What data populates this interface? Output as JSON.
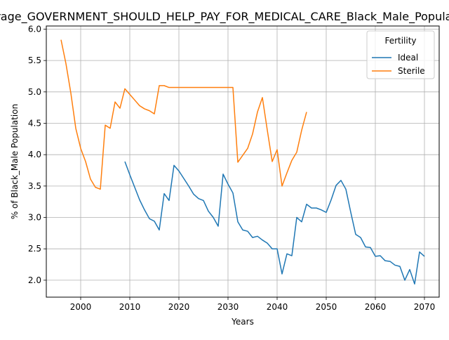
{
  "chart_data": {
    "type": "line",
    "title": "Average_GOVERNMENT_SHOULD_HELP_PAY_FOR_MEDICAL_CARE_Black_Male_Population",
    "xlabel": "Years",
    "ylabel": "% of Black_Male Population",
    "xlim": [
      1993,
      2073
    ],
    "ylim": [
      1.73,
      6.05
    ],
    "x_ticks": [
      2000,
      2010,
      2020,
      2030,
      2040,
      2050,
      2060,
      2070
    ],
    "y_ticks": [
      2.0,
      2.5,
      3.0,
      3.5,
      4.0,
      4.5,
      5.0,
      5.5,
      6.0
    ],
    "grid": true,
    "legend": {
      "title": "Fertility",
      "position": "top-right"
    },
    "series": [
      {
        "name": "Ideal",
        "color": "#1f77b4",
        "x": [
          2009,
          2010,
          2011,
          2012,
          2013,
          2014,
          2015,
          2016,
          2017,
          2018,
          2019,
          2020,
          2021,
          2022,
          2023,
          2024,
          2025,
          2026,
          2027,
          2028,
          2029,
          2030,
          2031,
          2032,
          2033,
          2034,
          2035,
          2036,
          2037,
          2038,
          2039,
          2040,
          2041,
          2042,
          2043,
          2044,
          2045,
          2046,
          2047,
          2048,
          2049,
          2050,
          2051,
          2052,
          2053,
          2054,
          2055,
          2056,
          2057,
          2058,
          2059,
          2060,
          2061,
          2062,
          2063,
          2064,
          2065,
          2066,
          2067,
          2068,
          2069,
          2070
        ],
        "values": [
          3.89,
          3.68,
          3.48,
          3.28,
          3.12,
          2.98,
          2.94,
          2.8,
          3.38,
          3.27,
          3.83,
          3.74,
          3.62,
          3.5,
          3.37,
          3.3,
          3.27,
          3.1,
          3.0,
          2.86,
          3.69,
          3.53,
          3.39,
          2.93,
          2.8,
          2.78,
          2.68,
          2.7,
          2.64,
          2.59,
          2.5,
          2.5,
          2.1,
          2.42,
          2.39,
          3.0,
          2.93,
          3.21,
          3.15,
          3.15,
          3.12,
          3.08,
          3.28,
          3.51,
          3.59,
          3.45,
          3.08,
          2.73,
          2.68,
          2.53,
          2.52,
          2.38,
          2.39,
          2.31,
          2.3,
          2.24,
          2.22,
          2.0,
          2.17,
          1.94,
          2.45,
          2.38
        ]
      },
      {
        "name": "Sterile",
        "color": "#ff7f0e",
        "x": [
          1996,
          1997,
          1998,
          1999,
          2000,
          2001,
          2002,
          2003,
          2004,
          2005,
          2006,
          2007,
          2008,
          2009,
          2010,
          2011,
          2012,
          2013,
          2014,
          2015,
          2016,
          2017,
          2018,
          2019,
          2020,
          2021,
          2022,
          2023,
          2024,
          2025,
          2026,
          2027,
          2028,
          2029,
          2030,
          2031,
          2032,
          2033,
          2034,
          2035,
          2036,
          2037,
          2038,
          2039,
          2040,
          2041,
          2042,
          2043,
          2044,
          2045,
          2046
        ],
        "values": [
          5.83,
          5.45,
          4.98,
          4.42,
          4.1,
          3.89,
          3.61,
          3.48,
          3.45,
          4.47,
          4.42,
          4.84,
          4.74,
          5.05,
          4.96,
          4.87,
          4.78,
          4.73,
          4.7,
          4.65,
          5.1,
          5.1,
          5.07,
          5.07,
          5.07,
          5.07,
          5.07,
          5.07,
          5.07,
          5.07,
          5.07,
          5.07,
          5.07,
          5.07,
          5.07,
          5.07,
          3.88,
          3.99,
          4.1,
          4.33,
          4.68,
          4.91,
          4.39,
          3.89,
          4.08,
          3.5,
          3.71,
          3.91,
          4.04,
          4.39,
          4.68
        ]
      }
    ]
  }
}
